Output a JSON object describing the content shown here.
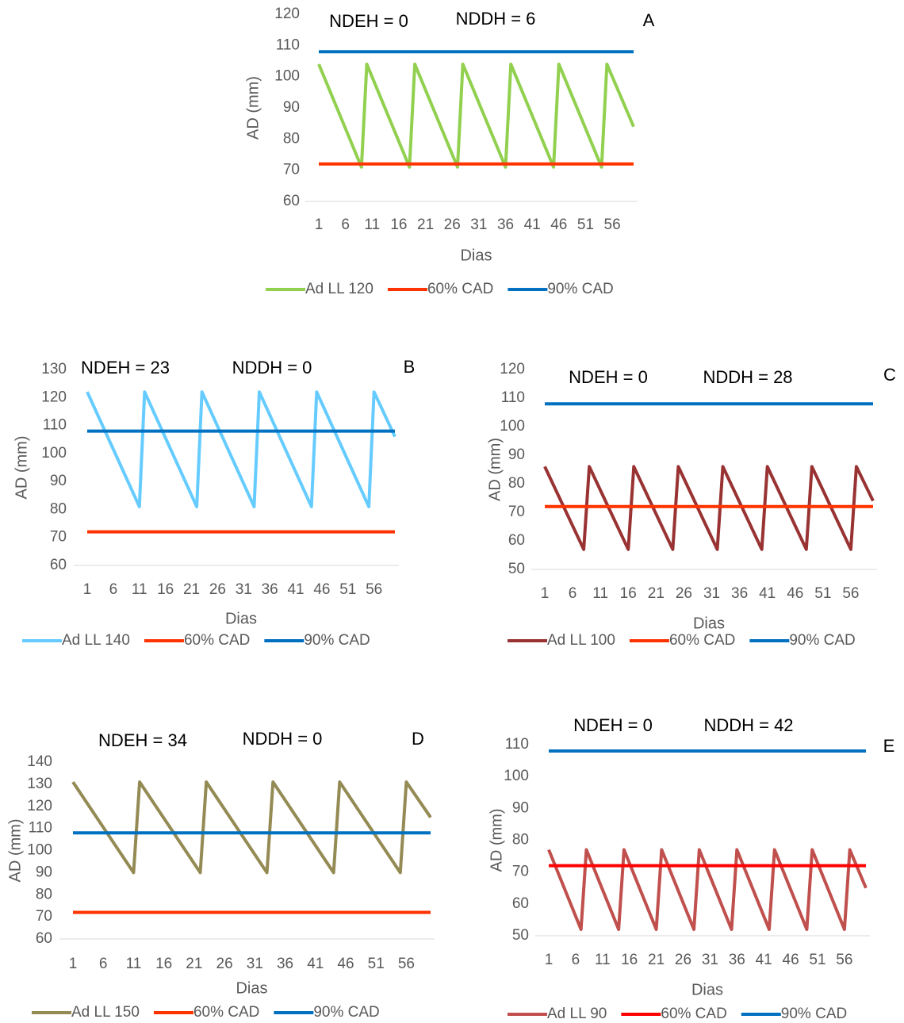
{
  "chart_data": [
    {
      "type": "line",
      "xlabel": "Dias",
      "ylabel": "AD (mm)",
      "annotations": [
        "NDEH = 0",
        "NDDH = 6",
        "A"
      ],
      "xlim": [
        1,
        60
      ],
      "xticks": [
        1,
        6,
        11,
        16,
        21,
        26,
        31,
        36,
        41,
        46,
        51,
        56
      ],
      "ylim": [
        60,
        120
      ],
      "yticks": [
        60,
        70,
        80,
        90,
        100,
        110,
        120
      ],
      "series": [
        {
          "name": "Ad LL 120",
          "color": "#92d050",
          "x": [
            1,
            9,
            10,
            18,
            19,
            27,
            28,
            36,
            37,
            45,
            46,
            54,
            55,
            60
          ],
          "values": [
            104,
            71,
            104,
            71,
            104,
            71,
            104,
            71,
            104,
            71,
            104,
            71,
            104,
            84
          ]
        },
        {
          "name": "60% CAD",
          "color": "#ff3300",
          "x": [
            1,
            60
          ],
          "values": [
            72,
            72
          ]
        },
        {
          "name": "90% CAD",
          "color": "#0070c0",
          "x": [
            1,
            60
          ],
          "values": [
            108,
            108
          ]
        }
      ]
    },
    {
      "type": "line",
      "xlabel": "Dias",
      "ylabel": "AD (mm)",
      "annotations": [
        "NDEH = 23",
        "NDDH = 0",
        "B"
      ],
      "xlim": [
        1,
        60
      ],
      "xticks": [
        1,
        6,
        11,
        16,
        21,
        26,
        31,
        36,
        41,
        46,
        51,
        56
      ],
      "ylim": [
        60,
        130
      ],
      "yticks": [
        60,
        70,
        80,
        90,
        100,
        110,
        120,
        130
      ],
      "series": [
        {
          "name": "Ad LL 140",
          "color": "#66ccff",
          "x": [
            1,
            11,
            12,
            22,
            23,
            33,
            34,
            44,
            45,
            55,
            56,
            60
          ],
          "values": [
            122,
            81,
            122,
            81,
            122,
            81,
            122,
            81,
            122,
            81,
            122,
            106
          ]
        },
        {
          "name": "60% CAD",
          "color": "#ff3300",
          "x": [
            1,
            60
          ],
          "values": [
            72,
            72
          ]
        },
        {
          "name": "90% CAD",
          "color": "#0070c0",
          "x": [
            1,
            60
          ],
          "values": [
            108,
            108
          ]
        }
      ]
    },
    {
      "type": "line",
      "xlabel": "Dias",
      "ylabel": "AD (mm)",
      "annotations": [
        "NDEH = 0",
        "NDDH = 28",
        "C"
      ],
      "xlim": [
        1,
        60
      ],
      "xticks": [
        1,
        6,
        11,
        16,
        21,
        26,
        31,
        36,
        41,
        46,
        51,
        56
      ],
      "ylim": [
        50,
        120
      ],
      "yticks": [
        50,
        60,
        70,
        80,
        90,
        100,
        110,
        120
      ],
      "series": [
        {
          "name": "Ad LL 100",
          "color": "#993333",
          "x": [
            1,
            8,
            9,
            16,
            17,
            24,
            25,
            32,
            33,
            40,
            41,
            48,
            49,
            56,
            57,
            60
          ],
          "values": [
            86,
            57,
            86,
            57,
            86,
            57,
            86,
            57,
            86,
            57,
            86,
            57,
            86,
            57,
            86,
            74
          ]
        },
        {
          "name": "60% CAD",
          "color": "#ff3300",
          "x": [
            1,
            60
          ],
          "values": [
            72,
            72
          ]
        },
        {
          "name": "90% CAD",
          "color": "#0070c0",
          "x": [
            1,
            60
          ],
          "values": [
            108,
            108
          ]
        }
      ]
    },
    {
      "type": "line",
      "xlabel": "Dias",
      "ylabel": "AD (mm)",
      "annotations": [
        "NDEH = 34",
        "NDDH = 0",
        "D"
      ],
      "xlim": [
        1,
        60
      ],
      "xticks": [
        1,
        6,
        11,
        16,
        21,
        26,
        31,
        36,
        41,
        46,
        51,
        56
      ],
      "ylim": [
        60,
        140
      ],
      "yticks": [
        60,
        70,
        80,
        90,
        100,
        110,
        120,
        130,
        140
      ],
      "series": [
        {
          "name": "Ad LL 150",
          "color": "#948a54",
          "x": [
            1,
            11,
            12,
            22,
            23,
            33,
            34,
            44,
            45,
            55,
            56,
            60
          ],
          "values": [
            131,
            90,
            131,
            90,
            131,
            90,
            131,
            90,
            131,
            90,
            131,
            115
          ]
        },
        {
          "name": "60% CAD",
          "color": "#ff3300",
          "x": [
            1,
            60
          ],
          "values": [
            72,
            72
          ]
        },
        {
          "name": "90% CAD",
          "color": "#0070c0",
          "x": [
            1,
            60
          ],
          "values": [
            108,
            108
          ]
        }
      ]
    },
    {
      "type": "line",
      "xlabel": "Dias",
      "ylabel": "AD (mm)",
      "annotations": [
        "NDEH = 0",
        "NDDH = 42",
        "E"
      ],
      "xlim": [
        1,
        60
      ],
      "xticks": [
        1,
        6,
        11,
        16,
        21,
        26,
        31,
        36,
        41,
        46,
        51,
        56
      ],
      "ylim": [
        50,
        110
      ],
      "yticks": [
        50,
        60,
        70,
        80,
        90,
        100,
        110
      ],
      "series": [
        {
          "name": "Ad LL 90",
          "color": "#c0504d",
          "x": [
            1,
            7,
            8,
            14,
            15,
            21,
            22,
            28,
            29,
            35,
            36,
            42,
            43,
            49,
            50,
            56,
            57,
            60
          ],
          "values": [
            77,
            52,
            77,
            52,
            77,
            52,
            77,
            52,
            77,
            52,
            77,
            52,
            77,
            52,
            77,
            52,
            77,
            65
          ]
        },
        {
          "name": "60% CAD",
          "color": "#ff0000",
          "x": [
            1,
            60
          ],
          "values": [
            72,
            72
          ]
        },
        {
          "name": "90% CAD",
          "color": "#0070c0",
          "x": [
            1,
            60
          ],
          "values": [
            108,
            108
          ]
        }
      ]
    }
  ]
}
